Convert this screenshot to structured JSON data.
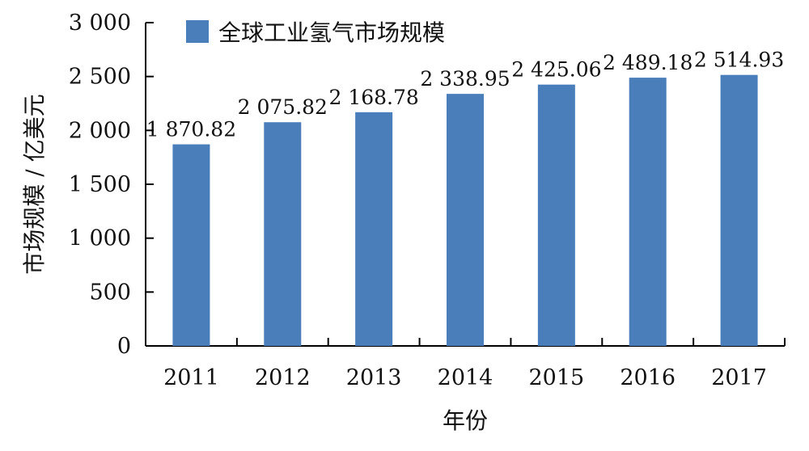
{
  "chart_data": {
    "type": "bar",
    "categories": [
      "2011",
      "2012",
      "2013",
      "2014",
      "2015",
      "2016",
      "2017"
    ],
    "series": [
      {
        "name": "全球工业氢气市场规模",
        "values": [
          1870.82,
          2075.82,
          2168.78,
          2338.95,
          2425.06,
          2489.18,
          2514.93
        ],
        "labels": [
          "1 870.82",
          "2 075.82",
          "2 168.78",
          "2 338.95",
          "2 425.06",
          "2 489.18",
          "2 514.93"
        ],
        "color": "#4A7EBB"
      }
    ],
    "xlabel": "年份",
    "ylabel": "市场规模 / 亿美元",
    "ylim": [
      0,
      3000
    ],
    "yticks": [
      0,
      500,
      1000,
      1500,
      2000,
      2500,
      3000
    ],
    "ytick_labels": [
      "0",
      "500",
      "1 000",
      "1 500",
      "2 000",
      "2 500",
      "3 000"
    ],
    "grid": false,
    "legend_position": "top-left"
  }
}
